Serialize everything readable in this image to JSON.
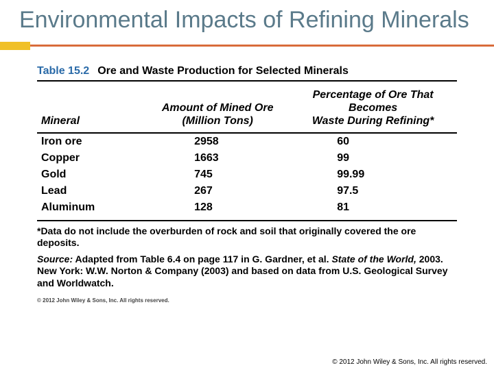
{
  "slide": {
    "title": "Environmental Impacts of Refining Minerals"
  },
  "table": {
    "number": "Table 15.2",
    "caption": "Ore and Waste Production for Selected Minerals",
    "columns": {
      "mineral": "Mineral",
      "amount_l1": "Amount of Mined Ore",
      "amount_l2": "(Million Tons)",
      "pct_l1": "Percentage of Ore That Becomes",
      "pct_l2": "Waste During Refining*"
    },
    "rows": [
      {
        "mineral": "Iron ore",
        "amount": "2958",
        "pct": "60"
      },
      {
        "mineral": "Copper",
        "amount": "1663",
        "pct": "99"
      },
      {
        "mineral": "Gold",
        "amount": "745",
        "pct": "99.99"
      },
      {
        "mineral": "Lead",
        "amount": "267",
        "pct": "97.5"
      },
      {
        "mineral": "Aluminum",
        "amount": "128",
        "pct": "81"
      }
    ],
    "footnote": "*Data do not include the overburden of rock and soil that originally covered the ore deposits.",
    "source_label": "Source:",
    "source_pre": " Adapted from Table 6.4 on page 117 in G. Gardner, et al. ",
    "source_book": "State of the World,",
    "source_post": " 2003. New York: W.W. Norton & Company (2003) and based on data from U.S. Geological Survey and Worldwatch.",
    "inner_copyright": "© 2012 John Wiley & Sons, Inc. All rights reserved."
  },
  "footer": {
    "copyright": "© 2012 John Wiley & Sons, Inc. All rights reserved."
  },
  "colors": {
    "title": "#5a7a8a",
    "accent_yellow": "#f0c028",
    "accent_orange": "#d96b3a",
    "table_number": "#2a6aa8",
    "rule": "#000000",
    "background": "#ffffff"
  }
}
